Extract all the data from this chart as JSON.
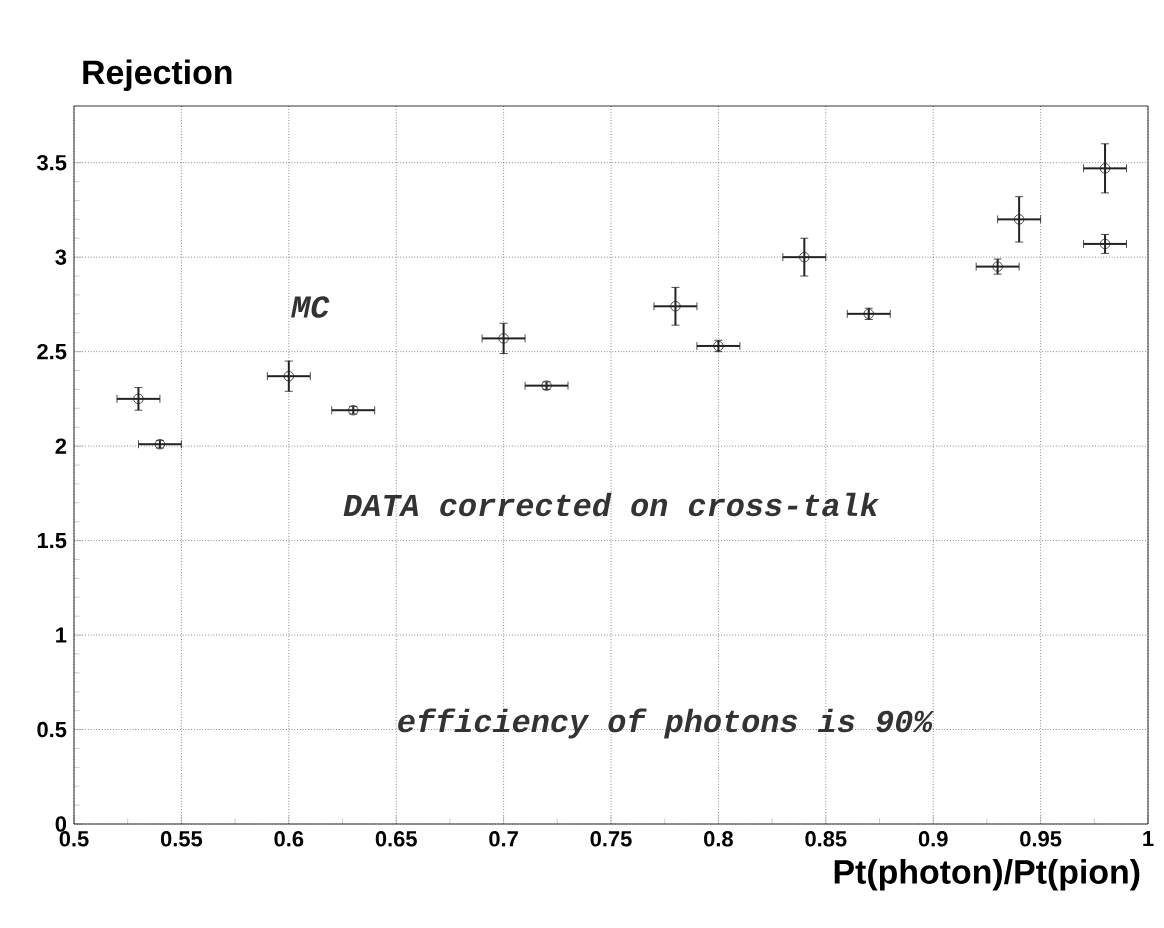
{
  "chart_data": {
    "type": "scatter",
    "title": "Rejection",
    "xlabel": "Pt(photon)/Pt(pion)",
    "xlim": [
      0.5,
      1
    ],
    "xticks": [
      0.5,
      0.55,
      0.6,
      0.65,
      0.7,
      0.75,
      0.8,
      0.85,
      0.9,
      0.95,
      1
    ],
    "ylim": [
      0,
      3.8
    ],
    "yticks": [
      0,
      0.5,
      1,
      1.5,
      2,
      2.5,
      3,
      3.5
    ],
    "grid": true,
    "annotations": [
      "efficiency of photons is 90%"
    ],
    "series": [
      {
        "name": "MC",
        "color": "#222222",
        "marker": "circle",
        "x": [
          0.53,
          0.6,
          0.7,
          0.78,
          0.84,
          0.94,
          0.98
        ],
        "values": [
          2.25,
          2.37,
          2.57,
          2.74,
          3.0,
          3.2,
          3.47
        ],
        "errors": [
          0.06,
          0.08,
          0.08,
          0.1,
          0.1,
          0.12,
          0.13
        ],
        "xerrors": [
          0.01,
          0.01,
          0.01,
          0.01,
          0.01,
          0.01,
          0.01
        ]
      },
      {
        "name": "DATA corrected on cross-talk",
        "color": "#222222",
        "marker": "circle",
        "x": [
          0.54,
          0.63,
          0.72,
          0.8,
          0.87,
          0.93,
          0.98
        ],
        "values": [
          2.01,
          2.19,
          2.32,
          2.53,
          2.7,
          2.95,
          3.07
        ],
        "errors": [
          0.02,
          0.02,
          0.02,
          0.03,
          0.03,
          0.04,
          0.05
        ],
        "xerrors": [
          0.01,
          0.01,
          0.01,
          0.01,
          0.01,
          0.01,
          0.01
        ]
      }
    ]
  }
}
